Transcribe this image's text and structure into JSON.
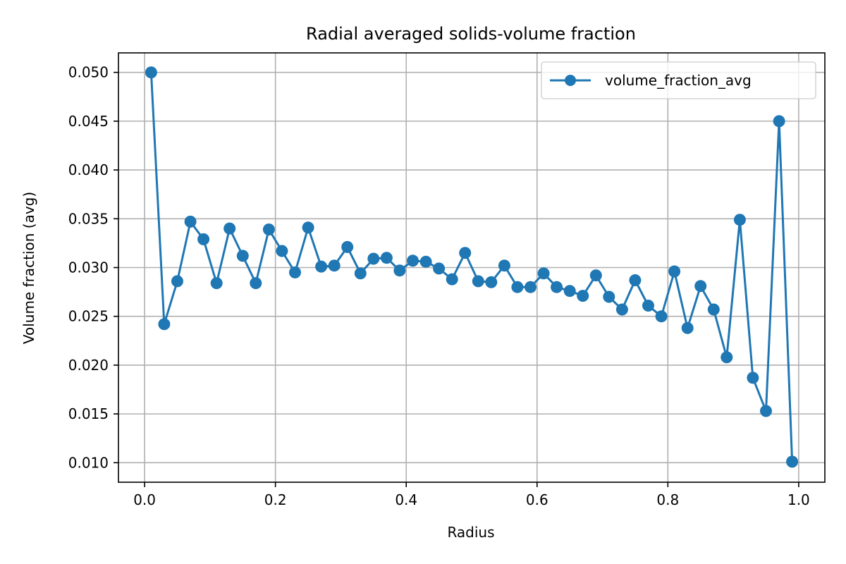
{
  "chart_data": {
    "type": "line",
    "title": "Radial averaged solids-volume fraction",
    "xlabel": "Radius",
    "ylabel": "Volume fraction (avg)",
    "xlim": [
      -0.04,
      1.04
    ],
    "ylim": [
      0.008,
      0.052
    ],
    "grid": true,
    "legend_position": "top-right",
    "x_ticks": [
      0.0,
      0.2,
      0.4,
      0.6,
      0.8,
      1.0
    ],
    "x_tick_labels": [
      "0.0",
      "0.2",
      "0.4",
      "0.6",
      "0.8",
      "1.0"
    ],
    "y_ticks": [
      0.01,
      0.015,
      0.02,
      0.025,
      0.03,
      0.035,
      0.04,
      0.045,
      0.05
    ],
    "y_tick_labels": [
      "0.010",
      "0.015",
      "0.020",
      "0.025",
      "0.030",
      "0.035",
      "0.040",
      "0.045",
      "0.050"
    ],
    "series": [
      {
        "name": "volume_fraction_avg",
        "color": "#1f77b4",
        "marker": "circle",
        "x": [
          0.01,
          0.03,
          0.05,
          0.07,
          0.09,
          0.11,
          0.13,
          0.15,
          0.17,
          0.19,
          0.21,
          0.23,
          0.25,
          0.27,
          0.29,
          0.31,
          0.33,
          0.35,
          0.37,
          0.39,
          0.41,
          0.43,
          0.45,
          0.47,
          0.49,
          0.51,
          0.53,
          0.55,
          0.57,
          0.59,
          0.61,
          0.63,
          0.65,
          0.67,
          0.69,
          0.71,
          0.73,
          0.75,
          0.77,
          0.79,
          0.81,
          0.83,
          0.85,
          0.87,
          0.89,
          0.91,
          0.93,
          0.95,
          0.97,
          0.99
        ],
        "y": [
          0.05,
          0.0242,
          0.0286,
          0.0347,
          0.0329,
          0.0284,
          0.034,
          0.0312,
          0.0284,
          0.0339,
          0.0317,
          0.0295,
          0.0341,
          0.0301,
          0.0302,
          0.0321,
          0.0294,
          0.0309,
          0.031,
          0.0297,
          0.0307,
          0.0306,
          0.0299,
          0.0288,
          0.0315,
          0.0286,
          0.0285,
          0.0302,
          0.028,
          0.028,
          0.0294,
          0.028,
          0.0276,
          0.0271,
          0.0292,
          0.027,
          0.0257,
          0.0287,
          0.0261,
          0.025,
          0.0296,
          0.0238,
          0.0281,
          0.0257,
          0.0208,
          0.0349,
          0.0187,
          0.0153,
          0.045,
          0.0101
        ]
      }
    ]
  }
}
